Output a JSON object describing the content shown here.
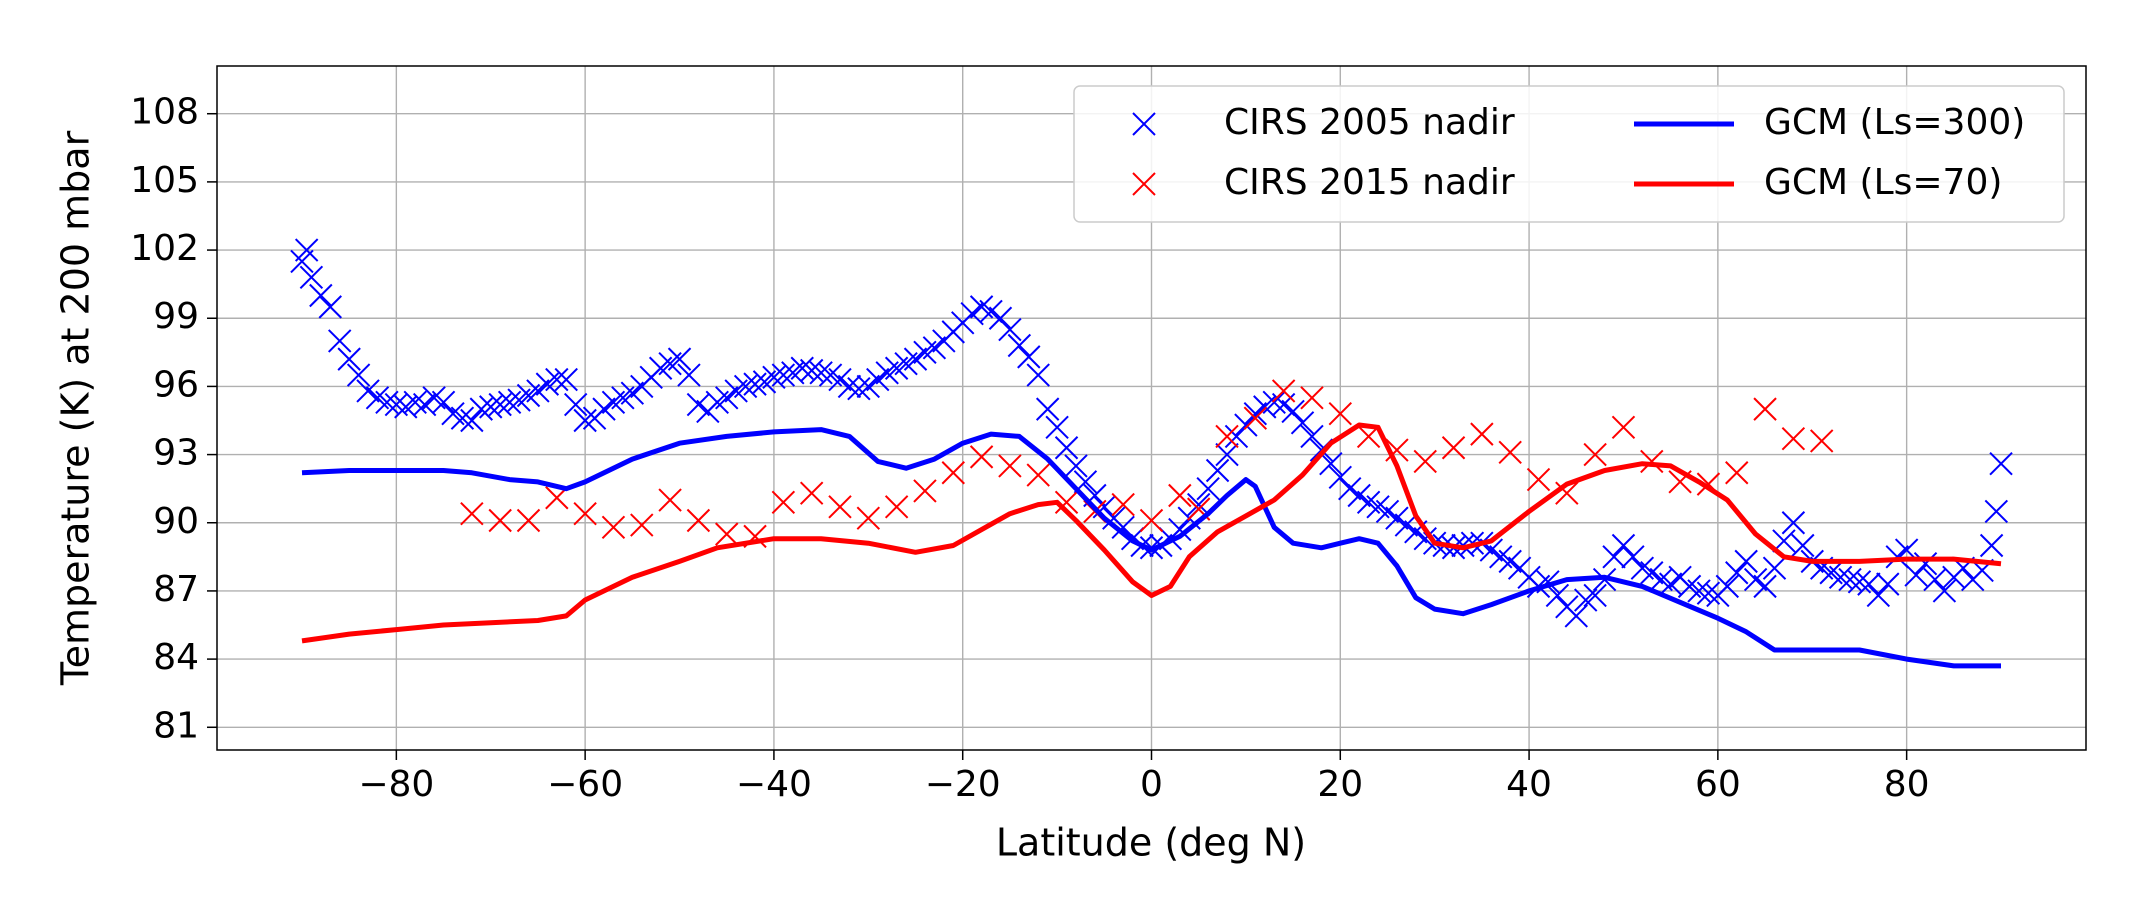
{
  "chart_data": {
    "type": "line",
    "xlabel": "Latitude (deg N)",
    "ylabel": "Temperature (K) at 200 mbar",
    "xlim": [
      -99,
      99
    ],
    "ylim": [
      80,
      110.1
    ],
    "xticks": [
      {
        "value": -80,
        "label": "−80"
      },
      {
        "value": -60,
        "label": "−60"
      },
      {
        "value": -40,
        "label": "−40"
      },
      {
        "value": -20,
        "label": "−20"
      },
      0,
      20,
      40,
      60,
      80
    ],
    "yticks": [
      81,
      84,
      87,
      90,
      93,
      96,
      99,
      102,
      105,
      108
    ],
    "grid": true,
    "legend": "upper right",
    "legend_columns": 2,
    "series": [
      {
        "name": "CIRS 2005 nadir",
        "color": "#0000ff",
        "kind": "marker",
        "x": [
          -90,
          -89.5,
          -89,
          -88,
          -87,
          -86,
          -85,
          -84,
          -83,
          -82,
          -81,
          -80,
          -79,
          -78,
          -77,
          -76,
          -75,
          -74,
          -73,
          -72,
          -71,
          -70,
          -69,
          -68,
          -67,
          -66,
          -65,
          -64,
          -63,
          -62,
          -61,
          -60,
          -59,
          -58,
          -57,
          -56,
          -55,
          -54,
          -53,
          -52,
          -51,
          -50,
          -49,
          -48,
          -47,
          -46,
          -45,
          -44,
          -43,
          -42,
          -41,
          -40,
          -39,
          -38,
          -37,
          -36,
          -35,
          -34,
          -33,
          -32,
          -31,
          -30,
          -29,
          -28,
          -27,
          -26,
          -25,
          -24,
          -23,
          -22,
          -21,
          -20,
          -19,
          -18,
          -17,
          -16,
          -15,
          -14,
          -13,
          -12,
          -11,
          -10,
          -9,
          -8,
          -7,
          -6,
          -5,
          -4,
          -3,
          -2,
          -1,
          0,
          1,
          2,
          3,
          4,
          5,
          6,
          7,
          8,
          9,
          10,
          11,
          12,
          13,
          14,
          15,
          16,
          17,
          18,
          19,
          20,
          21,
          22,
          23,
          24,
          25,
          26,
          27,
          28,
          29,
          30,
          31,
          32,
          33,
          34,
          35,
          36,
          37,
          38,
          39,
          40,
          41,
          42,
          43,
          44,
          45,
          46,
          47,
          48,
          49,
          50,
          51,
          52,
          53,
          54,
          55,
          56,
          57,
          58,
          59,
          60,
          61,
          62,
          63,
          64,
          65,
          66,
          67,
          68,
          69,
          70,
          71,
          72,
          73,
          74,
          75,
          76,
          77,
          78,
          79,
          80,
          81,
          82,
          83,
          84,
          85,
          86,
          87,
          88,
          89,
          89.5,
          90
        ],
        "values": [
          101.5,
          102,
          100.8,
          100,
          99.5,
          98,
          97.2,
          96.5,
          95.8,
          95.5,
          95.3,
          95.2,
          95.1,
          95.3,
          95.2,
          95.5,
          95.3,
          94.8,
          94.6,
          94.5,
          95,
          95.1,
          95.2,
          95.3,
          95.4,
          95.6,
          95.8,
          96.1,
          96.3,
          96.3,
          95.2,
          94.5,
          94.6,
          95,
          95.3,
          95.5,
          95.7,
          96,
          96.4,
          96.8,
          97,
          97.2,
          96.5,
          95.2,
          94.9,
          95.3,
          95.5,
          95.8,
          96,
          96.1,
          96.2,
          96.4,
          96.5,
          96.6,
          96.8,
          96.7,
          96.6,
          96.5,
          96.3,
          96,
          95.9,
          96,
          96.3,
          96.6,
          96.8,
          97,
          97.2,
          97.5,
          97.7,
          98,
          98.4,
          98.8,
          99.2,
          99.5,
          99.3,
          99,
          98.5,
          97.8,
          97.3,
          96.5,
          95,
          94.2,
          93.3,
          92.5,
          91.8,
          91.2,
          90.7,
          90.2,
          89.8,
          89.3,
          89,
          88.9,
          89,
          89.3,
          89.7,
          90.2,
          90.8,
          91.5,
          92.3,
          93,
          93.8,
          94.3,
          94.8,
          95.1,
          95.3,
          95.2,
          94.9,
          94.4,
          93.8,
          93.2,
          92.6,
          92,
          91.5,
          91.2,
          90.9,
          90.7,
          90.5,
          90.2,
          89.9,
          89.6,
          89.3,
          89.1,
          89,
          88.9,
          89,
          89.1,
          89.1,
          88.8,
          88.5,
          88.3,
          88,
          87.6,
          87.2,
          87.4,
          86.8,
          86.3,
          85.9,
          86.6,
          86.8,
          87.5,
          88.5,
          89,
          88.5,
          88,
          87.8,
          87.5,
          87.3,
          87.6,
          87.2,
          87,
          86.9,
          86.8,
          87.2,
          87.8,
          88.3,
          87.5,
          87.2,
          88,
          89.2,
          90,
          89,
          88.3,
          88,
          87.8,
          87.6,
          87.5,
          87.4,
          87.3,
          86.8,
          87.3,
          88.5,
          88.8,
          87.7,
          88.2,
          87.5,
          87,
          87.6,
          88,
          87.5,
          87.9,
          89,
          90.5,
          92.6
        ]
      },
      {
        "name": "CIRS 2015 nadir",
        "color": "#ff0000",
        "kind": "marker",
        "x": [
          -72,
          -69,
          -66,
          -63,
          -60,
          -57,
          -54,
          -51,
          -48,
          -45,
          -42,
          -39,
          -36,
          -33,
          -30,
          -27,
          -24,
          -21,
          -18,
          -15,
          -12,
          -9,
          -6,
          -3,
          0,
          3,
          5,
          8,
          11,
          14,
          17,
          20,
          23,
          26,
          29,
          32,
          35,
          38,
          41,
          44,
          47,
          50,
          53,
          56,
          59,
          62,
          65,
          68,
          71
        ],
        "values": [
          90.4,
          90.1,
          90.1,
          91.1,
          90.4,
          89.8,
          89.9,
          91,
          90.1,
          89.5,
          89.4,
          90.9,
          91.3,
          90.7,
          90.2,
          90.7,
          91.4,
          92.2,
          92.9,
          92.5,
          92.1,
          90.9,
          90.5,
          90.8,
          90.1,
          91.2,
          90.6,
          93.8,
          94.6,
          95.8,
          95.5,
          94.8,
          93.8,
          93.2,
          92.7,
          93.3,
          93.9,
          93.1,
          91.9,
          91.3,
          93,
          94.2,
          92.7,
          91.8,
          91.7,
          92.2,
          95,
          93.7,
          93.6
        ]
      },
      {
        "name": "GCM (Ls=300)",
        "color": "#0000ff",
        "kind": "line",
        "x": [
          -90,
          -85,
          -80,
          -75,
          -72,
          -68,
          -65,
          -62,
          -60,
          -55,
          -50,
          -45,
          -40,
          -35,
          -32,
          -29,
          -26,
          -23,
          -20,
          -17,
          -14,
          -11,
          -8,
          -5,
          -2,
          0,
          3,
          6,
          8,
          10,
          11,
          13,
          15,
          18,
          20,
          22,
          24,
          26,
          28,
          30,
          33,
          36,
          40,
          44,
          48,
          52,
          56,
          60,
          63,
          66,
          68,
          70,
          75,
          80,
          85,
          90
        ],
        "values": [
          92.2,
          92.3,
          92.3,
          92.3,
          92.2,
          91.9,
          91.8,
          91.5,
          91.8,
          92.8,
          93.5,
          93.8,
          94,
          94.1,
          93.8,
          92.7,
          92.4,
          92.8,
          93.5,
          93.9,
          93.8,
          92.8,
          91.5,
          90.2,
          89.2,
          88.8,
          89.4,
          90.4,
          91.2,
          91.9,
          91.6,
          89.8,
          89.1,
          88.9,
          89.1,
          89.3,
          89.1,
          88.1,
          86.7,
          86.2,
          86,
          86.4,
          87,
          87.5,
          87.6,
          87.2,
          86.5,
          85.8,
          85.2,
          84.4,
          84.4,
          84.4,
          84.4,
          84,
          83.7,
          83.7
        ]
      },
      {
        "name": "GCM (Ls=70)",
        "color": "#ff0000",
        "kind": "line",
        "x": [
          -90,
          -85,
          -80,
          -75,
          -70,
          -65,
          -62,
          -60,
          -55,
          -50,
          -46,
          -40,
          -35,
          -30,
          -25,
          -21,
          -18,
          -15,
          -12,
          -10,
          -8,
          -5,
          -2,
          0,
          2,
          4,
          7,
          10,
          13,
          16,
          19,
          22,
          24,
          26,
          28,
          30,
          33,
          36,
          40,
          44,
          48,
          52,
          55,
          58,
          61,
          64,
          67,
          70,
          75,
          80,
          85,
          90
        ],
        "values": [
          84.8,
          85.1,
          85.3,
          85.5,
          85.6,
          85.7,
          85.9,
          86.6,
          87.6,
          88.3,
          88.9,
          89.3,
          89.3,
          89.1,
          88.7,
          89,
          89.7,
          90.4,
          90.8,
          90.9,
          90.1,
          88.8,
          87.4,
          86.8,
          87.2,
          88.5,
          89.6,
          90.3,
          91,
          92.1,
          93.5,
          94.3,
          94.2,
          92.5,
          90.3,
          89.1,
          88.9,
          89.2,
          90.5,
          91.7,
          92.3,
          92.6,
          92.5,
          91.8,
          91,
          89.5,
          88.5,
          88.3,
          88.3,
          88.4,
          88.4,
          88.2
        ]
      }
    ]
  }
}
